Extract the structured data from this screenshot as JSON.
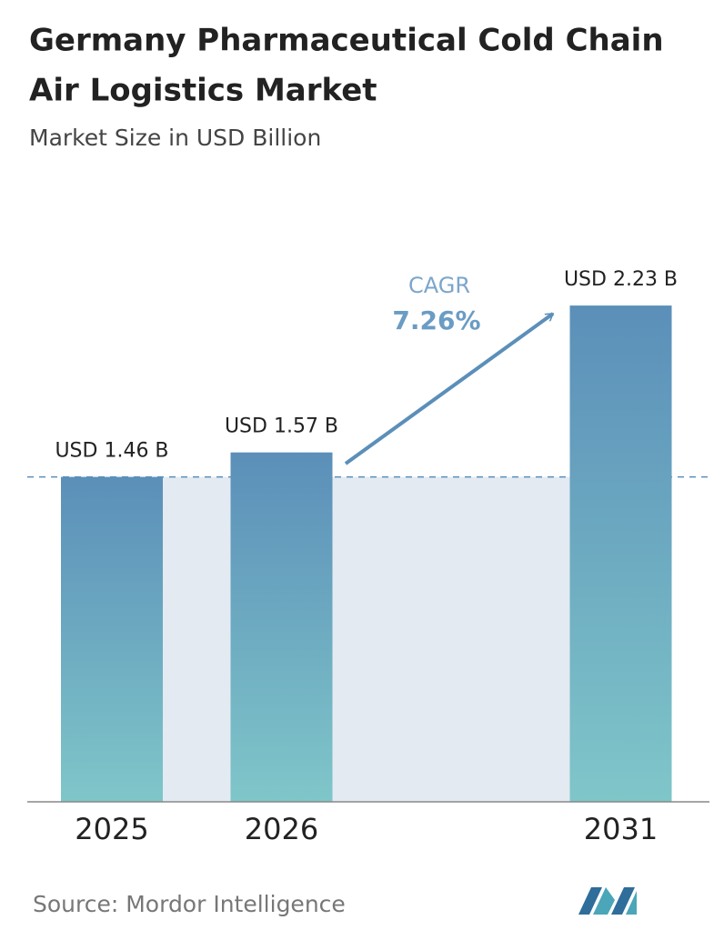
{
  "chart_data": {
    "type": "bar",
    "title": [
      "Germany Pharmaceutical Cold Chain",
      "Air Logistics Market"
    ],
    "subtitle": "Market Size in USD Billion",
    "categories": [
      "2025",
      "2026",
      null,
      "2031"
    ],
    "values": [
      1.46,
      1.57,
      null,
      2.23
    ],
    "value_labels": [
      "USD 1.46 B",
      "USD 1.57 B",
      null,
      "USD 2.23 B"
    ],
    "color": [
      "#5b8fb9",
      "#7fc6c9"
    ],
    "ylim": [
      0,
      2.5
    ],
    "annotation": {
      "label": "CAGR",
      "value": "7.26%"
    },
    "source": "Source: Mordor Intelligence"
  }
}
